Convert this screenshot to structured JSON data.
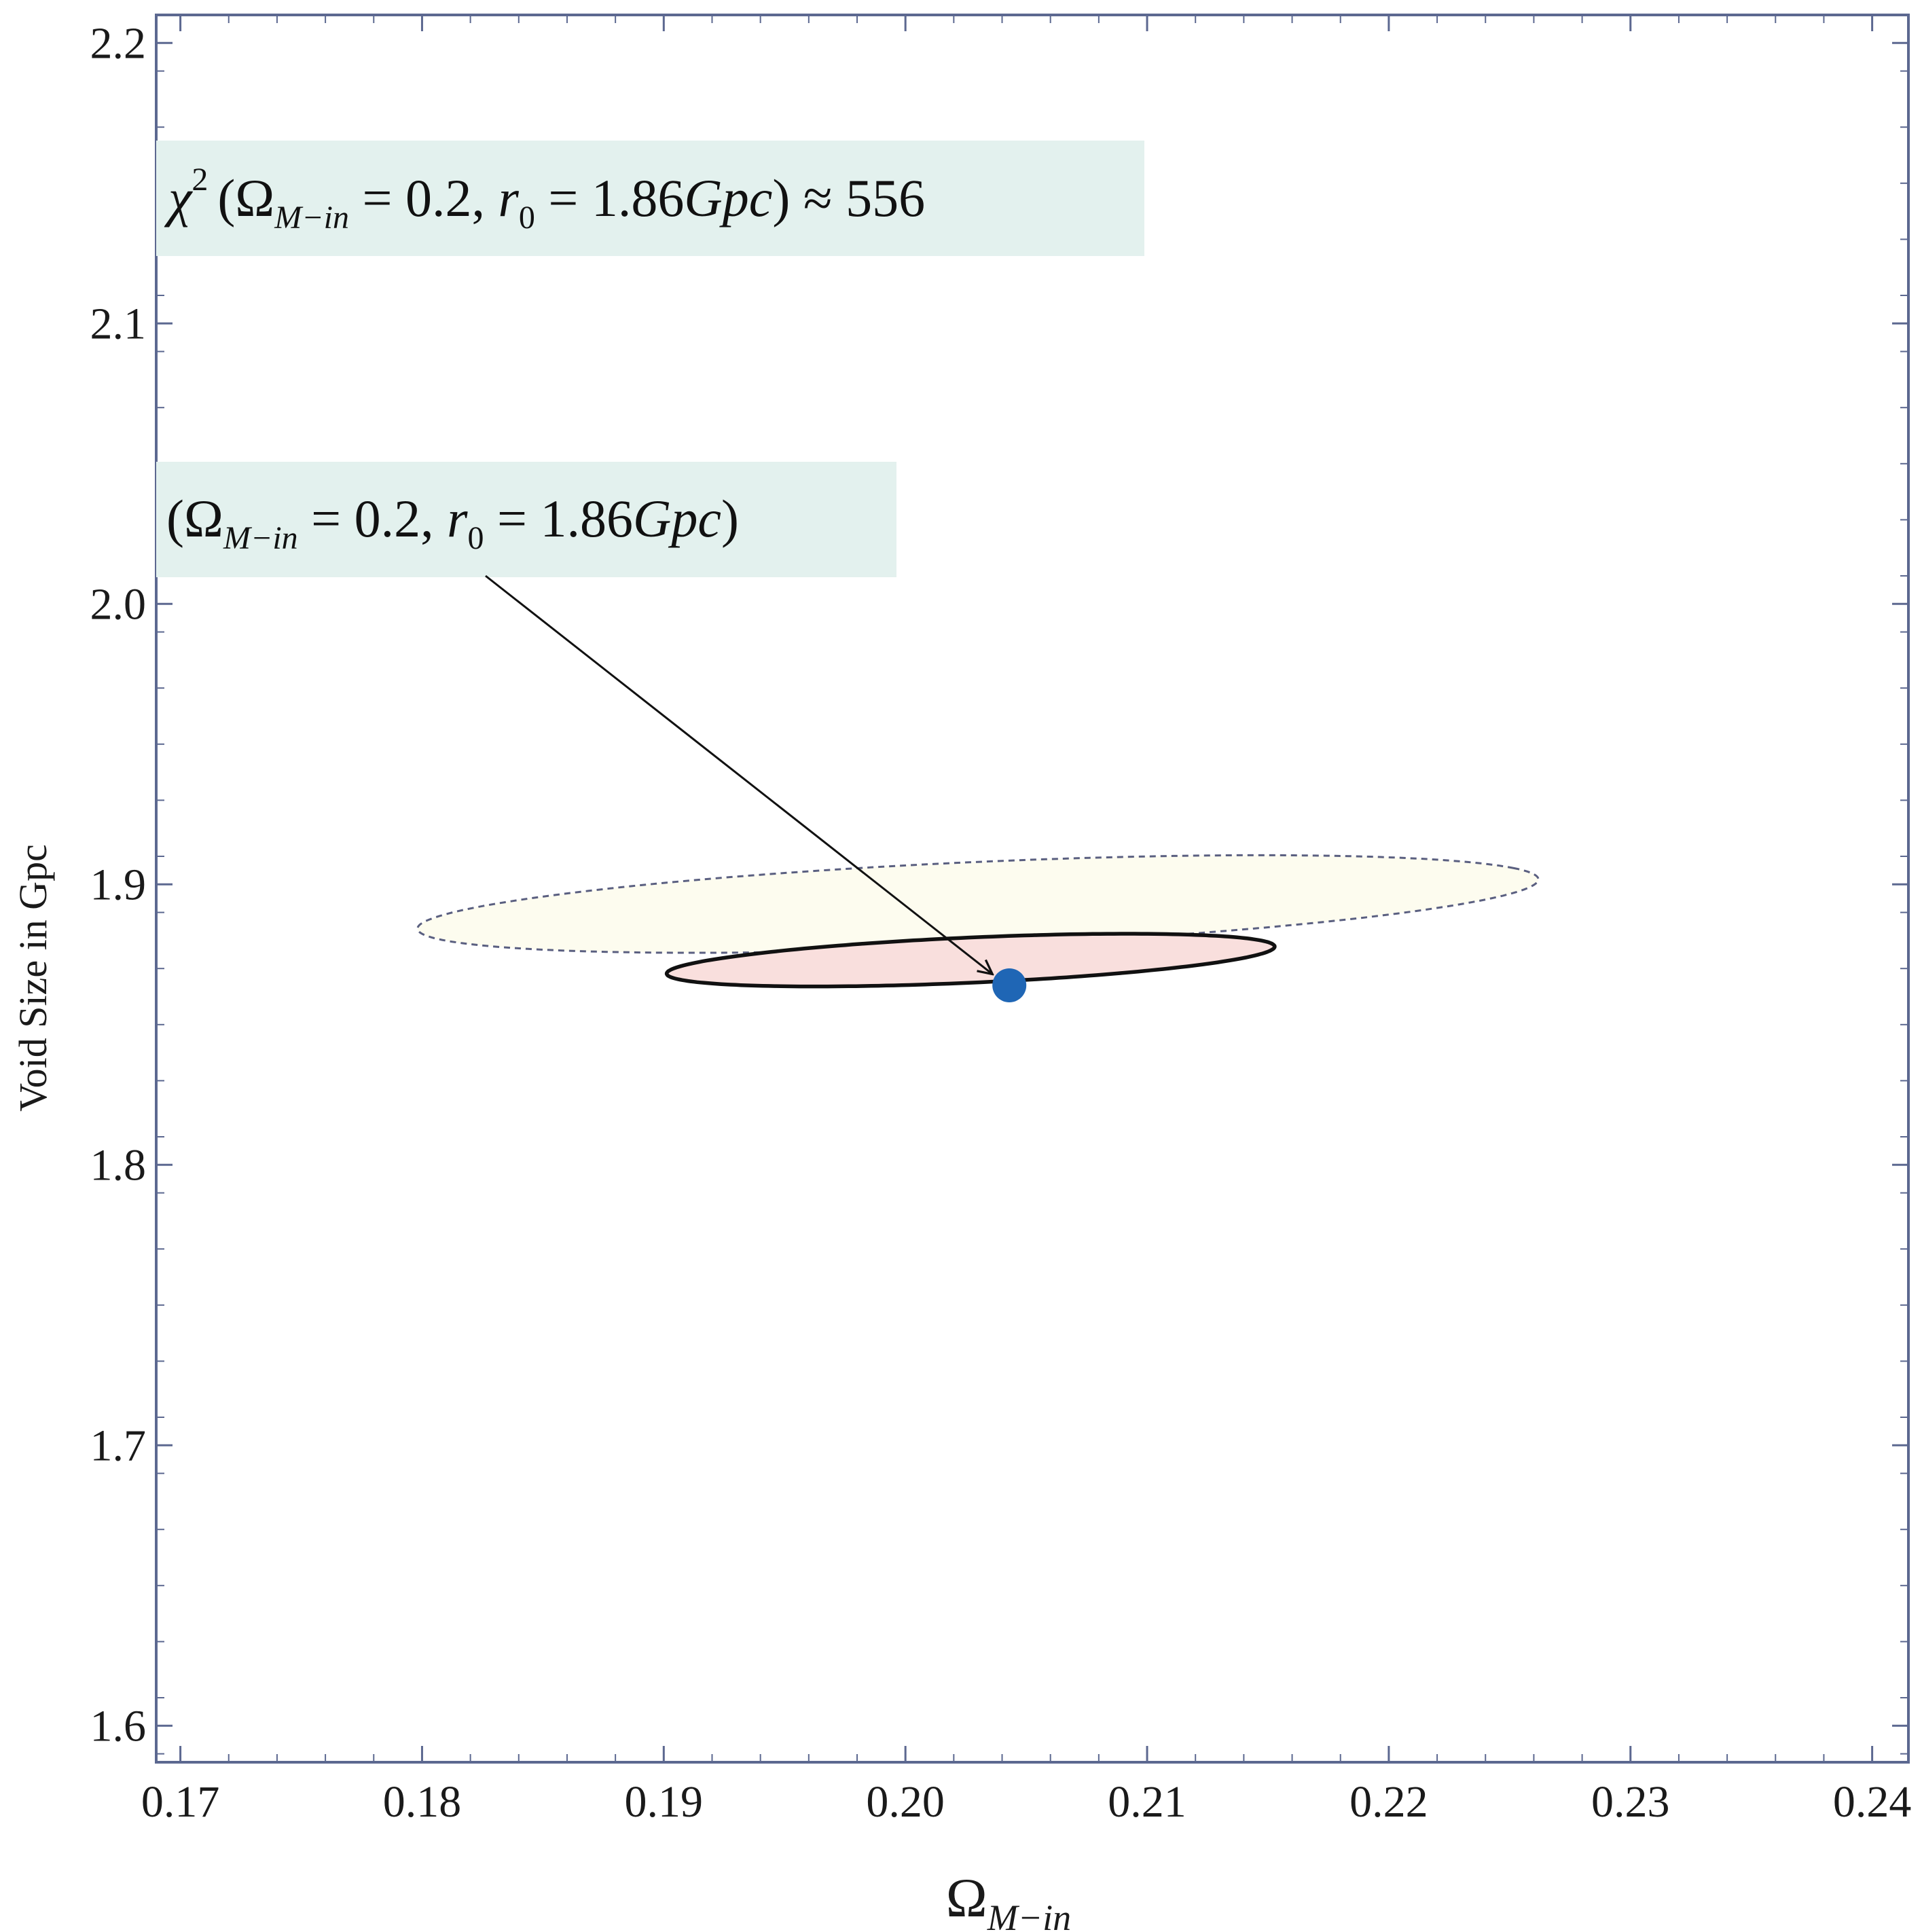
{
  "chart_data": {
    "type": "contour",
    "title": "",
    "xlabel": "Ω",
    "xlabel_sub": "M−in",
    "ylabel": "Void Size in Gpc",
    "xlim": [
      0.169,
      0.2415
    ],
    "ylim": [
      1.587,
      2.21
    ],
    "xticks": [
      "0.17",
      "0.18",
      "0.19",
      "0.20",
      "0.21",
      "0.22",
      "0.23",
      "0.24"
    ],
    "yticks": [
      "1.6",
      "1.7",
      "1.8",
      "1.9",
      "2.0",
      "2.1",
      "2.2"
    ],
    "grid": false,
    "regions": [
      {
        "level": "outer",
        "style": "dashed",
        "fill": "#fdfcef",
        "stroke": "#5a5f80",
        "center": [
          0.203,
          1.893
        ],
        "semi_axis_major": 0.0256,
        "semi_axis_minor": 0.0136,
        "angle_deg": 30
      },
      {
        "level": "inner",
        "style": "solid",
        "fill": "#f9dfdd",
        "stroke": "#111111",
        "center": [
          0.2027,
          1.873
        ],
        "semi_axis_major": 0.0139,
        "semi_axis_minor": 0.0073,
        "angle_deg": 30
      }
    ],
    "points": [
      {
        "x": 0.2043,
        "y": 1.864,
        "color": "#1f66b5"
      }
    ],
    "annotations": [
      {
        "kind": "chi2",
        "parts": [
          "χ",
          "2",
          "(Ω",
          "M−in",
          " = 0.2, ",
          "r",
          "0",
          " = 1.86",
          "Gpc",
          ") ≈ 556"
        ],
        "background": "#e3f1ee"
      },
      {
        "kind": "best-fit",
        "parts": [
          "(Ω",
          "M−in",
          " = 0.2, ",
          "r",
          "0",
          " = 1.86",
          "Gpc",
          ")"
        ],
        "background": "#e3f1ee",
        "arrow_to": [
          0.2036,
          1.868
        ]
      }
    ]
  }
}
